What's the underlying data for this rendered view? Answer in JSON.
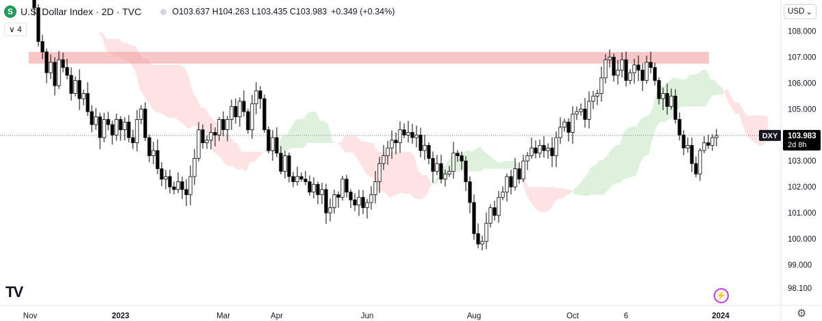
{
  "header": {
    "symbol_letter": "S",
    "title": "U.S. Dollar Index · 2D · TVC",
    "ohlc": "O103.637  H104.263  L103.435  C103.983",
    "change": "+0.349 (+0.34%)",
    "indicator_toggle": "∨  4"
  },
  "currency_select": {
    "label": "USD",
    "chevron": "⌄"
  },
  "price_badge": {
    "symbol": "DXY",
    "price": "103.983",
    "countdown": "2d 8h"
  },
  "logo_text": "TV",
  "icons": {
    "symbol": "dollar-icon",
    "lightning": "lightning-icon",
    "settings": "gear-icon",
    "logo": "tradingview-logo-icon"
  },
  "colors": {
    "up": "#ffffff",
    "down": "#000000",
    "bull_cloud": "#d9f0d9",
    "bear_cloud": "#fde0e0",
    "resistance_zone": "#f2a0a0"
  },
  "chart_data": {
    "type": "candlestick",
    "title": "U.S. Dollar Index · 2D · TVC",
    "y_ticks": [
      "108.000",
      "107.000",
      "106.000",
      "105.000",
      "103.000",
      "102.000",
      "101.000",
      "100.000",
      "99.000",
      "98.100"
    ],
    "y_tick_values": [
      108,
      107,
      106,
      105,
      103,
      102,
      101,
      100,
      99,
      98.1
    ],
    "ylim": [
      97.6,
      109.2
    ],
    "x_ticks": [
      "Nov",
      "2023",
      "Mar",
      "Apr",
      "Jun",
      "Aug",
      "Oct",
      "6",
      "2024"
    ],
    "x_tick_index": [
      0,
      22,
      47,
      60,
      82,
      108,
      132,
      145,
      168
    ],
    "n_slots": 176,
    "last_price": 103.983,
    "resistance_zone": [
      106.75,
      107.2
    ],
    "closes": [
      109.5,
      108.9,
      107.6,
      107.2,
      106.4,
      106.8,
      105.9,
      106.9,
      106.6,
      106.3,
      105.6,
      106.1,
      105.4,
      105.6,
      104.9,
      104.4,
      104.7,
      103.9,
      104.6,
      104.4,
      104.0,
      104.6,
      104.2,
      104.5,
      103.9,
      103.7,
      104.6,
      105.0,
      103.9,
      103.2,
      103.4,
      102.7,
      102.3,
      102.4,
      102.0,
      101.9,
      102.2,
      101.9,
      101.7,
      102.4,
      103.1,
      104.2,
      103.7,
      103.8,
      104.1,
      104.0,
      104.6,
      104.2,
      104.6,
      105.1,
      104.7,
      105.3,
      104.9,
      104.2,
      105.2,
      105.7,
      105.4,
      104.2,
      103.4,
      103.9,
      103.3,
      102.6,
      103.2,
      102.4,
      102.2,
      102.4,
      102.3,
      102.2,
      101.8,
      102.1,
      101.7,
      101.9,
      101.0,
      101.2,
      101.7,
      101.6,
      102.3,
      101.8,
      101.5,
      101.3,
      101.6,
      101.2,
      101.4,
      101.7,
      102.2,
      102.9,
      103.2,
      103.5,
      103.8,
      103.7,
      104.2,
      104.0,
      104.1,
      103.9,
      104.0,
      103.4,
      103.6,
      103.1,
      102.6,
      102.9,
      102.3,
      102.5,
      102.6,
      103.3,
      103.2,
      103.0,
      102.2,
      101.4,
      100.2,
      99.8,
      99.9,
      100.6,
      101.2,
      100.9,
      101.6,
      101.8,
      102.4,
      102.0,
      102.7,
      102.3,
      103.0,
      103.2,
      103.5,
      103.3,
      103.6,
      103.4,
      103.5,
      103.2,
      103.9,
      104.3,
      104.5,
      104.1,
      104.8,
      104.9,
      105.0,
      104.6,
      105.3,
      105.5,
      105.6,
      106.2,
      106.9,
      107.0,
      106.3,
      106.5,
      106.9,
      106.1,
      106.4,
      106.7,
      106.5,
      106.1,
      106.8,
      106.6,
      106.1,
      105.4,
      105.6,
      105.1,
      105.5,
      104.6,
      104.0,
      103.5,
      103.6,
      102.9,
      102.5,
      103.4,
      103.7,
      103.6,
      103.9,
      103.98
    ]
  }
}
